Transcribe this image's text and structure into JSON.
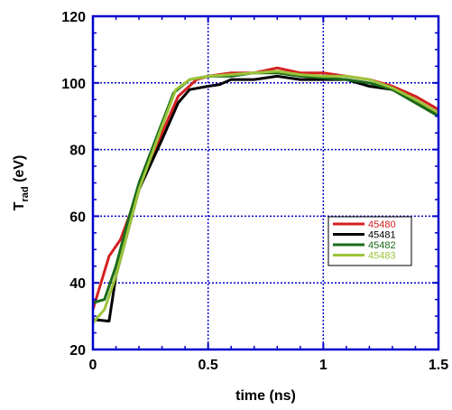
{
  "chart_data": {
    "type": "line",
    "title": "",
    "xlabel": "time (ns)",
    "ylabel": {
      "main": "T",
      "sub": "rad",
      "unit": " (eV)"
    },
    "xlim": [
      0,
      1.5
    ],
    "ylim": [
      20,
      120
    ],
    "xticks": [
      {
        "value": 0,
        "label": "0"
      },
      {
        "value": 0.5,
        "label": "0.5"
      },
      {
        "value": 1,
        "label": "1"
      },
      {
        "value": 1.5,
        "label": "1.5"
      }
    ],
    "yticks": [
      {
        "value": 20,
        "label": "20"
      },
      {
        "value": 40,
        "label": "40"
      },
      {
        "value": 60,
        "label": "60"
      },
      {
        "value": 80,
        "label": "80"
      },
      {
        "value": 100,
        "label": "100"
      },
      {
        "value": 120,
        "label": "120"
      }
    ],
    "grid": true,
    "frame_color": "#0000cc",
    "grid_color": "#0000cc",
    "legend_position": "right-middle",
    "series": [
      {
        "name": "45480",
        "color": "#d42020",
        "x": [
          0.0,
          0.07,
          0.12,
          0.2,
          0.3,
          0.37,
          0.45,
          0.5,
          0.6,
          0.7,
          0.8,
          0.9,
          1.0,
          1.1,
          1.2,
          1.3,
          1.4,
          1.5
        ],
        "y": [
          32,
          48,
          53,
          68,
          85,
          96,
          101,
          102,
          103,
          103,
          104.5,
          103,
          103,
          102,
          101,
          99,
          96,
          92
        ]
      },
      {
        "name": "45481",
        "color": "#000000",
        "x": [
          0.0,
          0.07,
          0.1,
          0.15,
          0.2,
          0.3,
          0.37,
          0.42,
          0.5,
          0.55,
          0.6,
          0.7,
          0.8,
          0.9,
          1.0,
          1.1,
          1.2,
          1.3,
          1.4,
          1.5
        ],
        "y": [
          29,
          28.5,
          42,
          55,
          68,
          83,
          94,
          98,
          99,
          99.5,
          101,
          101,
          102,
          101,
          101,
          101,
          99,
          98,
          95,
          90
        ]
      },
      {
        "name": "45482",
        "color": "#1a6b1a",
        "x": [
          0.0,
          0.05,
          0.1,
          0.15,
          0.2,
          0.3,
          0.35,
          0.42,
          0.5,
          0.6,
          0.7,
          0.8,
          0.9,
          1.0,
          1.1,
          1.2,
          1.3,
          1.4,
          1.5
        ],
        "y": [
          34,
          35,
          45,
          58,
          70,
          88,
          97,
          101,
          102,
          102,
          103,
          103,
          102,
          101.5,
          101,
          100,
          98,
          94,
          90
        ]
      },
      {
        "name": "45483",
        "color": "#9cc43a",
        "x": [
          0.0,
          0.05,
          0.1,
          0.15,
          0.2,
          0.3,
          0.36,
          0.42,
          0.5,
          0.6,
          0.7,
          0.8,
          0.9,
          1.0,
          1.1,
          1.2,
          1.3,
          1.4,
          1.5
        ],
        "y": [
          28,
          32,
          42,
          55,
          68,
          87,
          98,
          101,
          102,
          102.5,
          103,
          103.5,
          102.5,
          102,
          102,
          101,
          98.5,
          95,
          91
        ]
      }
    ]
  }
}
